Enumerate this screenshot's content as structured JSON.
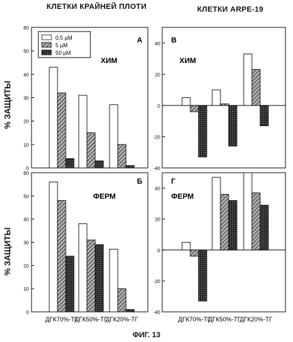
{
  "header": {
    "left": "КЛЕТКИ КРАЙНЕЙ ПЛОТИ",
    "right": "КЛЕТКИ ARPE-19"
  },
  "figure_caption": "ФИГ. 13",
  "y_axis_label": "% ЗАЩИТЫ",
  "colors": {
    "series_0_5": "#ffffff",
    "series_5": "#8a8a8a",
    "series_50": "#2a2a2a"
  },
  "chart_data": [
    {
      "type": "bar",
      "panel_letter": "А",
      "inner_label": "ХИМ",
      "categories": [
        "ДГК70%-ТГ",
        "ДГК50%-ТГ",
        "ДГК20%-ТГ"
      ],
      "series": [
        {
          "name": "0,5 µM",
          "values": [
            43,
            31,
            27
          ]
        },
        {
          "name": "5 µM",
          "values": [
            32,
            15,
            10
          ]
        },
        {
          "name": "50 µM",
          "values": [
            4,
            3,
            1
          ]
        }
      ],
      "ylabel": "% ЗАЩИТЫ",
      "ylim": [
        0,
        60
      ],
      "yticks": [
        0,
        10,
        20,
        30,
        40,
        50,
        60
      ],
      "legend": "top-left"
    },
    {
      "type": "bar",
      "panel_letter": "В",
      "inner_label": "ХИМ",
      "categories": [
        "ДГК70%-ТГ",
        "ДГК50%-ТГ",
        "ДГК20%-ТГ"
      ],
      "series": [
        {
          "name": "0,5 µM",
          "values": [
            5,
            10,
            33
          ]
        },
        {
          "name": "5 µM",
          "values": [
            -4,
            1,
            23
          ]
        },
        {
          "name": "50 µM",
          "values": [
            -33,
            -26,
            -13
          ]
        }
      ],
      "ylim": [
        -40,
        50
      ],
      "yticks": [
        -40,
        -20,
        0,
        20,
        40
      ]
    },
    {
      "type": "bar",
      "panel_letter": "Б",
      "inner_label": "ФЕРМ",
      "categories": [
        "ДГК70%-ТГ",
        "ДГК50%-ТГ",
        "ДГК20%-ТГ"
      ],
      "series": [
        {
          "name": "0,5 µM",
          "values": [
            56,
            38,
            27
          ]
        },
        {
          "name": "5 µM",
          "values": [
            48,
            31,
            10
          ]
        },
        {
          "name": "50 µM",
          "values": [
            24,
            29,
            1
          ]
        }
      ],
      "ylabel": "% ЗАЩИТЫ",
      "ylim": [
        0,
        60
      ],
      "yticks": [
        0,
        10,
        20,
        30,
        40,
        50,
        60
      ]
    },
    {
      "type": "bar",
      "panel_letter": "Г",
      "inner_label": "ФЕРМ",
      "categories": [
        "ДГК70%-ТГ",
        "ДГК50%-ТГ",
        "ДГК20%-ТГ"
      ],
      "series": [
        {
          "name": "0,5 µM",
          "values": [
            5,
            47,
            50
          ]
        },
        {
          "name": "5 µM",
          "values": [
            -4,
            36,
            37
          ]
        },
        {
          "name": "50 µM",
          "values": [
            -33,
            32,
            29
          ]
        }
      ],
      "ylim": [
        -40,
        50
      ],
      "yticks": [
        -40,
        -20,
        0,
        20,
        40
      ]
    }
  ]
}
